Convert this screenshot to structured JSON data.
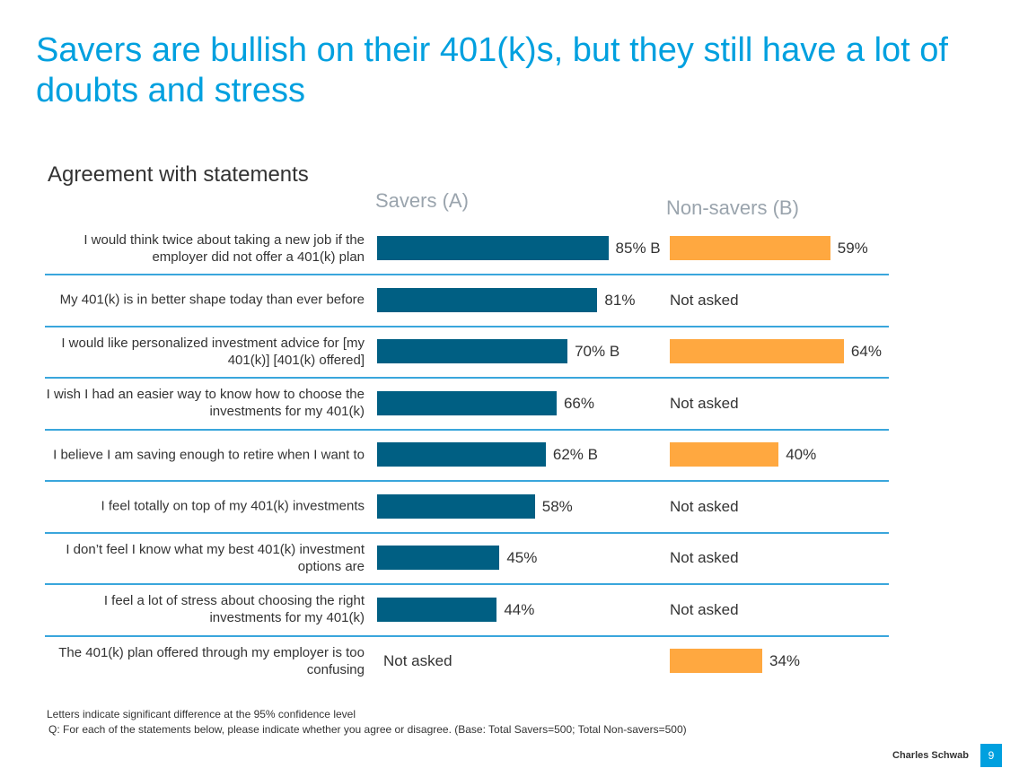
{
  "title": "Savers are bullish on their 401(k)s, but they still have a lot of doubts and stress",
  "chart_data": {
    "type": "bar",
    "title": "Agreement with statements",
    "unit": "%",
    "categories": [
      "I would think twice about taking a new job if the employer did not offer a 401(k) plan",
      "My 401(k) is in better shape today than ever before",
      "I would like personalized investment advice for [my 401(k)] [401(k) offered]",
      "I wish I had an easier way to know how to choose the investments for my 401(k)",
      "I believe I am saving enough to retire when  I want to",
      "I feel totally on top of my 401(k) investments",
      "I don’t feel I know what my best 401(k) investment options are",
      "I feel a lot of stress about choosing the right investments for my 401(k)",
      "The 401(k) plan offered through my employer is too confusing"
    ],
    "series": [
      {
        "name": "Savers (A)",
        "color": "#005f83",
        "values": [
          85,
          81,
          70,
          66,
          62,
          58,
          45,
          44,
          null
        ],
        "sig": [
          "B",
          "",
          "B",
          "",
          "B",
          "",
          "",
          "",
          ""
        ]
      },
      {
        "name": "Non-savers (B)",
        "color": "#ffa840",
        "values": [
          59,
          null,
          64,
          null,
          40,
          null,
          null,
          null,
          34
        ],
        "sig": [
          "",
          "",
          "",
          "",
          "",
          "",
          "",
          "",
          ""
        ]
      }
    ],
    "missing_label": "Not asked",
    "xlim": [
      0,
      100
    ]
  },
  "footnotes": [
    "Letters indicate significant difference at the 95% confidence level",
    "Q: For each of the statements below, please indicate whether you agree or disagree.  (Base: Total Savers=500; Total Non-savers=500)"
  ],
  "brand": "Charles Schwab",
  "page_number": "9"
}
